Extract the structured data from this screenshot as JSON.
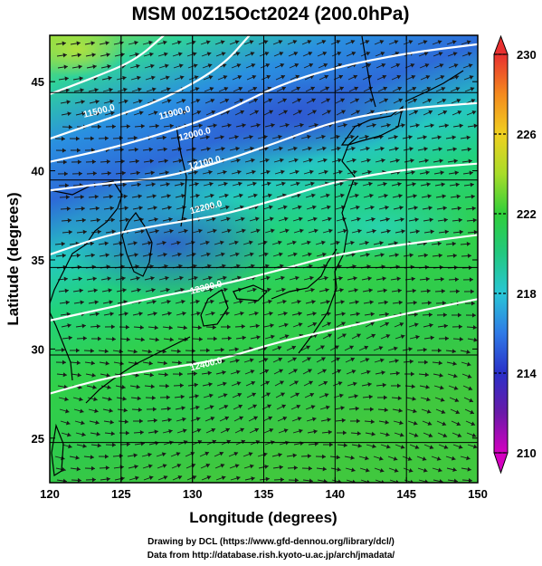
{
  "chart_data": {
    "type": "heatmap",
    "title": "MSM 00Z15Oct2024 (200.0hPa)",
    "xlabel": "Longitude (degrees)",
    "ylabel": "Latitude  (degrees)",
    "xlim": [
      120,
      150
    ],
    "ylim": [
      22.5,
      47.6
    ],
    "xticks": [
      120,
      125,
      130,
      135,
      140,
      145,
      150
    ],
    "yticks": [
      25,
      30,
      35,
      40,
      45
    ],
    "grid": true,
    "colorbar": {
      "min": 210,
      "max": 230,
      "ticks": [
        210,
        214,
        218,
        222,
        226,
        230
      ]
    },
    "contour_labels": [
      {
        "text": "11500.0",
        "lon": 123.5,
        "lat": 43.2
      },
      {
        "text": "11900.0",
        "lon": 128.8,
        "lat": 43.1
      },
      {
        "text": "12000.0",
        "lon": 130.2,
        "lat": 41.9
      },
      {
        "text": "12100.0",
        "lon": 130.9,
        "lat": 40.3
      },
      {
        "text": "12200.0",
        "lon": 131.0,
        "lat": 37.8
      },
      {
        "text": "12300.0",
        "lon": 131.0,
        "lat": 33.3
      },
      {
        "text": "12400.0",
        "lon": 131.0,
        "lat": 29.0
      }
    ],
    "contour_lines": [
      {
        "level": 11500,
        "points": [
          [
            120,
            44.3
          ],
          [
            123,
            45.2
          ],
          [
            126,
            46.2
          ],
          [
            128,
            47.6
          ]
        ]
      },
      {
        "level": 11900,
        "points": [
          [
            120,
            41.8
          ],
          [
            124,
            42.9
          ],
          [
            128,
            44.0
          ],
          [
            132,
            45.8
          ],
          [
            134,
            47.6
          ]
        ]
      },
      {
        "level": 12000,
        "points": [
          [
            120,
            40.5
          ],
          [
            124,
            41.2
          ],
          [
            128,
            42.1
          ],
          [
            132,
            43.2
          ],
          [
            136,
            44.8
          ],
          [
            140,
            45.8
          ],
          [
            145,
            46.6
          ],
          [
            150,
            47.1
          ]
        ]
      },
      {
        "level": 12100,
        "points": [
          [
            120,
            38.9
          ],
          [
            124,
            39.3
          ],
          [
            128,
            39.6
          ],
          [
            132,
            40.5
          ],
          [
            136,
            41.6
          ],
          [
            140,
            42.8
          ],
          [
            145,
            43.5
          ],
          [
            150,
            43.8
          ]
        ]
      },
      {
        "level": 12200,
        "points": [
          [
            120,
            35.3
          ],
          [
            124,
            36.4
          ],
          [
            128,
            37.0
          ],
          [
            132,
            37.5
          ],
          [
            136,
            38.4
          ],
          [
            140,
            39.4
          ],
          [
            145,
            40.1
          ],
          [
            150,
            40.4
          ]
        ]
      },
      {
        "level": 12300,
        "points": [
          [
            120,
            31.6
          ],
          [
            124,
            32.3
          ],
          [
            128,
            33.0
          ],
          [
            132,
            33.6
          ],
          [
            136,
            34.4
          ],
          [
            140,
            35.3
          ],
          [
            145,
            35.9
          ],
          [
            150,
            36.4
          ]
        ]
      },
      {
        "level": 12400,
        "points": [
          [
            120,
            27.5
          ],
          [
            124,
            28.4
          ],
          [
            128,
            28.9
          ],
          [
            132,
            29.4
          ],
          [
            136,
            30.4
          ],
          [
            140,
            31.1
          ],
          [
            145,
            32.0
          ],
          [
            150,
            32.8
          ]
        ]
      }
    ]
  },
  "credits": {
    "line1": "Drawing by DCL (https://www.gfd-dennou.org/library/dcl/)",
    "line2": "Data from http://database.rish.kyoto-u.ac.jp/arch/jmadata/"
  },
  "colors": {
    "background": "#ffffff",
    "contour": "#ffffff",
    "vector": "#1a1a1a",
    "coast": "#000000",
    "grid": "#000000"
  }
}
